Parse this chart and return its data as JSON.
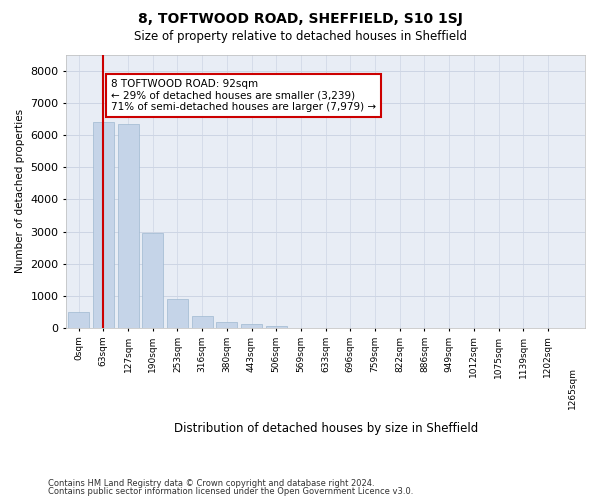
{
  "title": "8, TOFTWOOD ROAD, SHEFFIELD, S10 1SJ",
  "subtitle": "Size of property relative to detached houses in Sheffield",
  "xlabel": "Distribution of detached houses by size in Sheffield",
  "ylabel": "Number of detached properties",
  "footer_line1": "Contains HM Land Registry data © Crown copyright and database right 2024.",
  "footer_line2": "Contains public sector information licensed under the Open Government Licence v3.0.",
  "bar_color": "#c5d4e8",
  "bar_edge_color": "#9fb8d0",
  "grid_color": "#cdd5e4",
  "background_color": "#e8edf5",
  "vline_x": 1.0,
  "vline_color": "#cc0000",
  "annotation_text": "8 TOFTWOOD ROAD: 92sqm\n← 29% of detached houses are smaller (3,239)\n71% of semi-detached houses are larger (7,979) →",
  "annotation_box_edgecolor": "#cc0000",
  "bins": [
    "0sqm",
    "63sqm",
    "127sqm",
    "190sqm",
    "253sqm",
    "316sqm",
    "380sqm",
    "443sqm",
    "506sqm",
    "569sqm",
    "633sqm",
    "696sqm",
    "759sqm",
    "822sqm",
    "886sqm",
    "949sqm",
    "1012sqm",
    "1075sqm",
    "1139sqm",
    "1202sqm"
  ],
  "values": [
    480,
    6400,
    6350,
    2950,
    900,
    380,
    170,
    130,
    55,
    0,
    0,
    0,
    0,
    0,
    0,
    0,
    0,
    0,
    0,
    0
  ],
  "ylim": [
    0,
    8500
  ],
  "yticks": [
    0,
    1000,
    2000,
    3000,
    4000,
    5000,
    6000,
    7000,
    8000
  ],
  "extra_xtick_label": "1265sqm"
}
